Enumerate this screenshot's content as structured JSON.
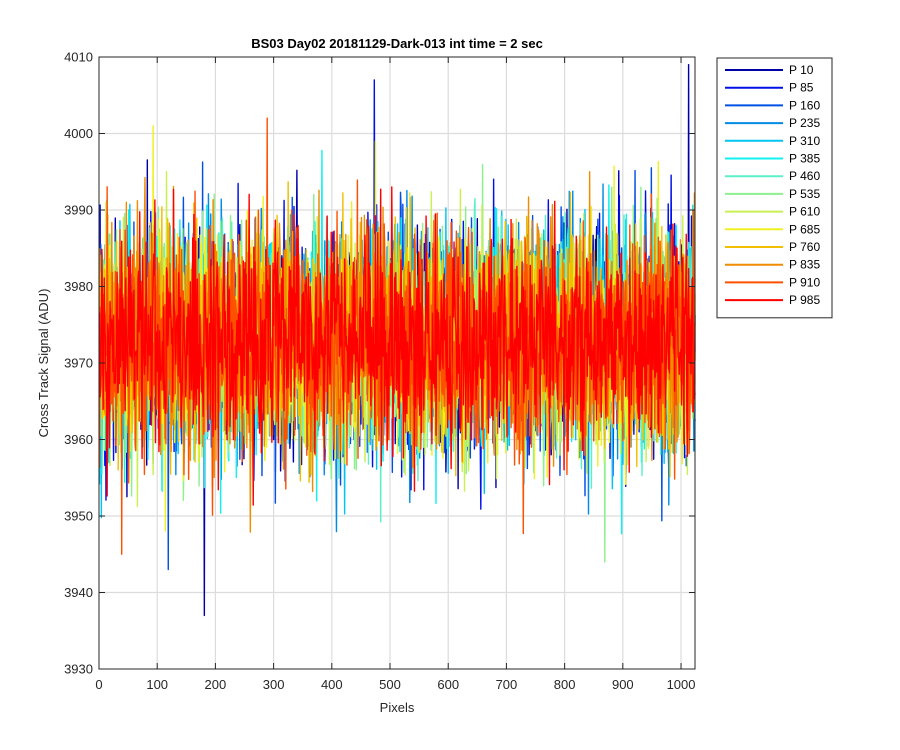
{
  "chart_data": {
    "type": "line",
    "title": "BS03 Day02 20181129-Dark-013 int time = 2 sec",
    "xlabel": "Pixels",
    "ylabel": "Cross Track Signal (ADU)",
    "xlim": [
      0,
      1024
    ],
    "ylim": [
      3930,
      4010
    ],
    "xticks": [
      0,
      100,
      200,
      300,
      400,
      500,
      600,
      700,
      800,
      900,
      1000
    ],
    "yticks": [
      3930,
      3940,
      3950,
      3960,
      3970,
      3980,
      3990,
      4000,
      4010
    ],
    "grid": true,
    "legend_position": "outside-top-right",
    "signal_mean": 3973,
    "signal_noise_std": 7,
    "series": [
      {
        "name": "P 10",
        "color": "#0000aa"
      },
      {
        "name": "P 85",
        "color": "#0010e6"
      },
      {
        "name": "P 160",
        "color": "#0050e6"
      },
      {
        "name": "P 235",
        "color": "#008ce6"
      },
      {
        "name": "P 310",
        "color": "#00c4f2"
      },
      {
        "name": "P 385",
        "color": "#10f0f0"
      },
      {
        "name": "P 460",
        "color": "#5af0c8"
      },
      {
        "name": "P 535",
        "color": "#8cf08c"
      },
      {
        "name": "P 610",
        "color": "#c8f050"
      },
      {
        "name": "P 685",
        "color": "#f0f020"
      },
      {
        "name": "P 760",
        "color": "#f0c000"
      },
      {
        "name": "P 835",
        "color": "#f08c00"
      },
      {
        "name": "P 910",
        "color": "#ff5000"
      },
      {
        "name": "P 985",
        "color": "#ff0000"
      }
    ],
    "annotations": [
      {
        "series": "P 10",
        "x": 180,
        "y": 3937
      },
      {
        "series": "P 10",
        "x": 1012,
        "y": 4009
      },
      {
        "series": "P 85",
        "x": 472,
        "y": 4007
      },
      {
        "series": "P 910",
        "x": 288,
        "y": 4002
      },
      {
        "series": "P 910",
        "x": 38,
        "y": 3945
      },
      {
        "series": "P 685",
        "x": 92,
        "y": 4001
      },
      {
        "series": "P 535",
        "x": 868,
        "y": 3944
      },
      {
        "series": "P 160",
        "x": 118,
        "y": 3943
      }
    ]
  }
}
